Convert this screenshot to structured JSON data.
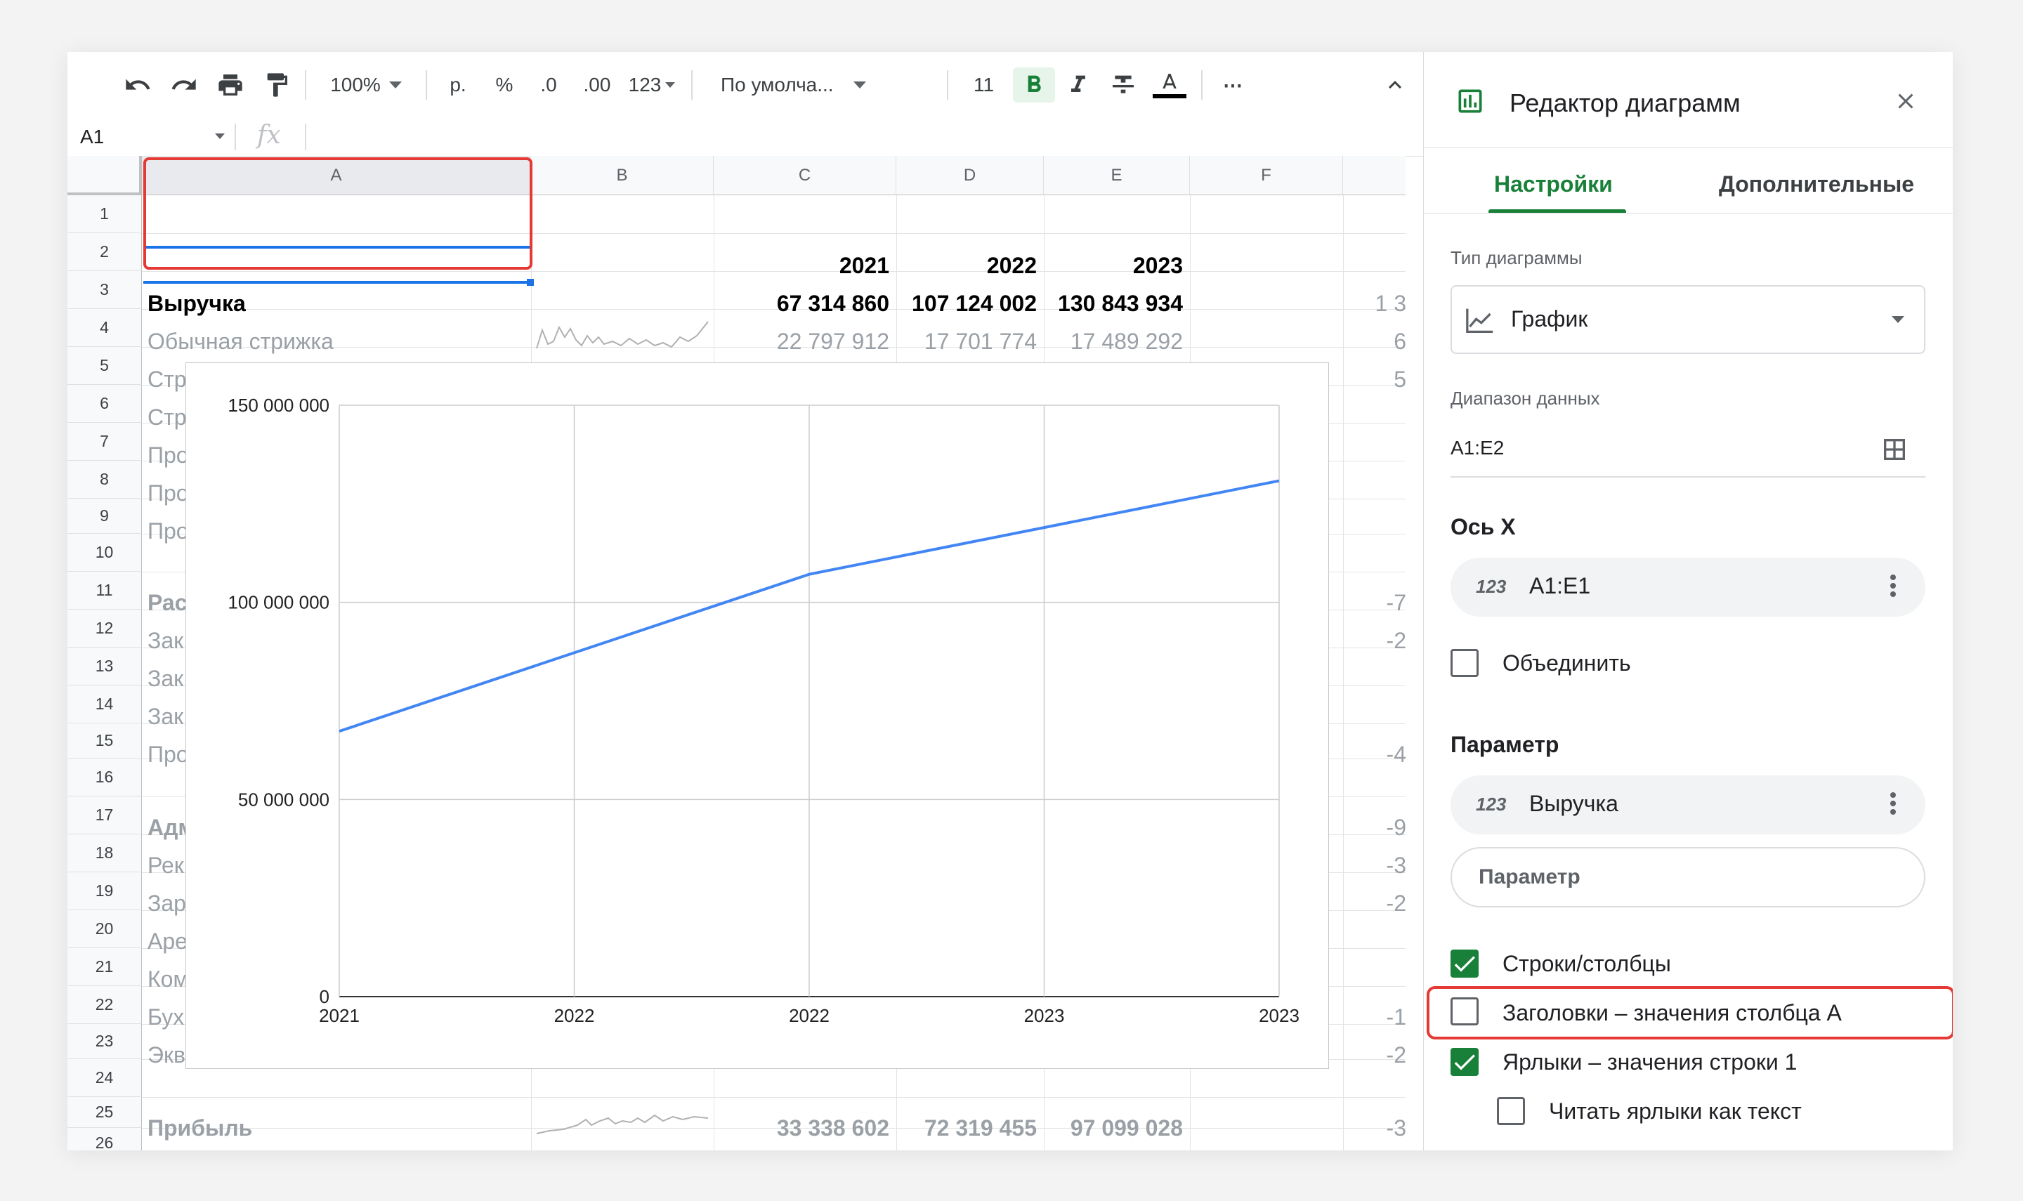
{
  "toolbar": {
    "zoom": "100%",
    "currency": "р.",
    "percent": "%",
    "dec_decrease": ".0",
    "dec_increase": ".00",
    "number_format": "123",
    "font_family": "По умолча...",
    "font_size": "11",
    "more": "⋯",
    "icons": [
      "undo-icon",
      "redo-icon",
      "print-icon",
      "paint-format-icon",
      "bold-icon",
      "italic-icon",
      "strikethrough-icon",
      "text-color-icon",
      "more-icon",
      "collapse-icon"
    ],
    "text_color": "#000000"
  },
  "formula_bar": {
    "name_box": "A1",
    "fx": "fx",
    "value": ""
  },
  "grid": {
    "columns": [
      "A",
      "B",
      "C",
      "D",
      "E",
      "F"
    ],
    "rows": [
      "1",
      "2",
      "3",
      "4",
      "5",
      "6",
      "7",
      "8",
      "9",
      "10",
      "11",
      "12",
      "13",
      "14",
      "15",
      "16",
      "17",
      "18",
      "19",
      "20",
      "21",
      "22",
      "23",
      "24",
      "25",
      "26"
    ],
    "cells": {
      "C1": "2021",
      "D1": "2022",
      "E1": "2023",
      "A2": "Выручка",
      "C2": "67 314 860",
      "D2": "107 124 002",
      "E2": "130 843 934",
      "G2": "1 3",
      "A3": "Обычная стрижка",
      "C3": "22 797 912",
      "D3": "17 701 774",
      "E3": "17 489 292",
      "G3": "6",
      "A4": "Стр",
      "G4": "5",
      "A5": "Стр",
      "A6": "Про",
      "A7": "Про",
      "A8": "Про",
      "A10": "Рас",
      "G10": "-7",
      "A11": "Зак",
      "G11": "-2",
      "A12": "Зак",
      "A13": "Зак",
      "A14": "Про",
      "G14": "-4",
      "A16": "Адм",
      "G16": "-9",
      "A17": "Рек",
      "G17": "-3",
      "A18": "Зар",
      "G18": "-2",
      "A19": "Аре",
      "A20": "Ком",
      "A21": "Бух",
      "G21": "-1",
      "A22": "Экв",
      "G22": "-2",
      "A24": "Прибыль",
      "C24": "33 338 602",
      "D24": "72 319 455",
      "E24": "97 099 028",
      "G24": "-3"
    }
  },
  "chart_data": {
    "type": "line",
    "categories": [
      "2021",
      "2022",
      "2022",
      "2023",
      "2023"
    ],
    "series": [
      {
        "values": [
          67314860,
          87219431,
          107124002,
          118983968,
          130843934
        ],
        "color": "#4285f4"
      }
    ],
    "yticks": [
      "150 000 000",
      "100 000 000",
      "50 000 000",
      "0"
    ],
    "ylim": [
      0,
      150000000
    ],
    "title": "",
    "xlabel": "",
    "ylabel": "",
    "grid": true
  },
  "panel": {
    "title": "Редактор диаграмм",
    "tabs": [
      "Настройки",
      "Дополнительные"
    ],
    "chart_type_label": "Тип диаграммы",
    "chart_type_value": "График",
    "data_range_label": "Диапазон данных",
    "data_range_value": "A1:E2",
    "x_axis_label": "Ось X",
    "x_axis_value": "A1:E1",
    "merge_label": "Объединить",
    "param_label": "Параметр",
    "param_value": "Выручка",
    "param_placeholder": "Параметр",
    "badge": "123",
    "checks": {
      "rows_cols": "Строки/столбцы",
      "headers": "Заголовки – значения столбца А",
      "labels": "Ярлыки – значения строки 1",
      "read_as_text": "Читать ярлыки как текст"
    },
    "accent": "#188038",
    "highlight": "#e53935"
  }
}
